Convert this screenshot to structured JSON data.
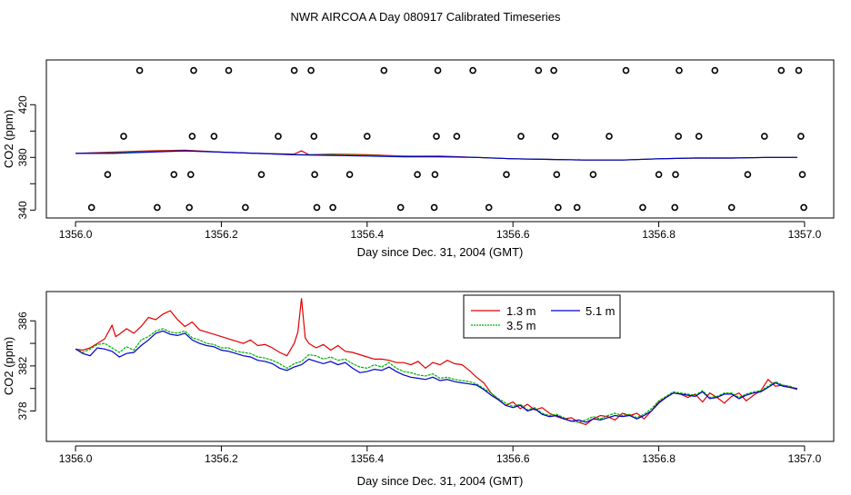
{
  "page_title": "NWR AIRCOA A  Day 080917  Calibrated Timeseries",
  "chart_data": [
    {
      "id": "top",
      "type": "scatter+line",
      "title": "",
      "xlabel": "Day since Dec. 31, 2004 (GMT)",
      "ylabel": "CO2 (ppm)",
      "xlim": [
        1355.96,
        1357.04
      ],
      "ylim": [
        334,
        454
      ],
      "xticks": [
        1356.0,
        1356.2,
        1356.4,
        1356.6,
        1356.8,
        1357.0
      ],
      "xtick_labels": [
        "1356.0",
        "1356.2",
        "1356.4",
        "1356.6",
        "1356.8",
        "1357.0"
      ],
      "yticks": [
        340,
        380,
        420
      ],
      "ytick_labels": [
        "340",
        "380",
        "420"
      ],
      "yticks_minor": [
        360,
        400
      ],
      "calibration_points": {
        "name": "calibration standards",
        "rows": [
          {
            "y": 446,
            "x": [
              1356.088,
              1356.162,
              1356.21,
              1356.3,
              1356.323,
              1356.423,
              1356.497,
              1356.545,
              1356.635,
              1356.656,
              1356.755,
              1356.828,
              1356.877,
              1356.968,
              1356.992
            ]
          },
          {
            "y": 396,
            "x": [
              1356.066,
              1356.16,
              1356.19,
              1356.278,
              1356.327,
              1356.4,
              1356.495,
              1356.523,
              1356.611,
              1356.658,
              1356.732,
              1356.827,
              1356.855,
              1356.945,
              1356.995
            ]
          },
          {
            "y": 367,
            "x": [
              1356.044,
              1356.135,
              1356.158,
              1356.255,
              1356.328,
              1356.376,
              1356.469,
              1356.493,
              1356.591,
              1356.66,
              1356.71,
              1356.8,
              1356.823,
              1356.922,
              1356.997
            ]
          },
          {
            "y": 342,
            "x": [
              1356.022,
              1356.112,
              1356.156,
              1356.233,
              1356.331,
              1356.353,
              1356.446,
              1356.492,
              1356.567,
              1356.662,
              1356.688,
              1356.778,
              1356.822,
              1356.9,
              1356.999
            ]
          }
        ]
      },
      "series": [
        {
          "name": "1.3 m",
          "color": "#e00000",
          "x": [
            1356.0,
            1356.05,
            1356.1,
            1356.15,
            1356.2,
            1356.25,
            1356.3,
            1356.31,
            1356.32,
            1356.35,
            1356.4,
            1356.45,
            1356.5,
            1356.55,
            1356.6,
            1356.65,
            1356.7,
            1356.75,
            1356.8,
            1356.85,
            1356.9,
            1356.95,
            1356.99
          ],
          "y": [
            383,
            384,
            385,
            385.5,
            384,
            383,
            382.5,
            385,
            382,
            382.5,
            382,
            381,
            381,
            380,
            379,
            378.5,
            378,
            378,
            379,
            379.5,
            379.5,
            380,
            380
          ]
        },
        {
          "name": "3.5 m",
          "color": "#00b000",
          "x": [
            1356.0,
            1356.05,
            1356.1,
            1356.15,
            1356.2,
            1356.25,
            1356.3,
            1356.35,
            1356.4,
            1356.45,
            1356.5,
            1356.55,
            1356.6,
            1356.65,
            1356.7,
            1356.75,
            1356.8,
            1356.85,
            1356.9,
            1356.95,
            1356.99
          ],
          "y": [
            383,
            383.5,
            384.5,
            385,
            384,
            383,
            382,
            382,
            381.5,
            381,
            380.5,
            380,
            379,
            378.5,
            378,
            378,
            379,
            379.5,
            379.5,
            380,
            380
          ]
        },
        {
          "name": "5.1 m",
          "color": "#0000cc",
          "x": [
            1356.0,
            1356.05,
            1356.1,
            1356.15,
            1356.2,
            1356.25,
            1356.3,
            1356.35,
            1356.4,
            1356.45,
            1356.5,
            1356.55,
            1356.6,
            1356.65,
            1356.7,
            1356.75,
            1356.8,
            1356.85,
            1356.9,
            1356.95,
            1356.99
          ],
          "y": [
            383,
            383,
            384,
            385,
            384,
            383,
            382,
            381.5,
            381,
            380.5,
            380.5,
            380,
            379,
            378.5,
            378,
            378,
            379,
            379.5,
            379.5,
            380,
            380
          ]
        }
      ]
    },
    {
      "id": "bottom",
      "type": "line",
      "title": "",
      "xlabel": "Day since Dec. 31, 2004 (GMT)",
      "ylabel": "CO2 (ppm)",
      "xlim": [
        1355.96,
        1357.04
      ],
      "ylim": [
        375.3,
        388.6
      ],
      "xticks": [
        1356.0,
        1356.2,
        1356.4,
        1356.6,
        1356.8,
        1357.0
      ],
      "xtick_labels": [
        "1356.0",
        "1356.2",
        "1356.4",
        "1356.6",
        "1356.8",
        "1357.0"
      ],
      "yticks": [
        378,
        382,
        386
      ],
      "ytick_labels": [
        "378",
        "382",
        "386"
      ],
      "yticks_minor": [
        380,
        384
      ],
      "legend": {
        "position": "top-center",
        "entries": [
          "1.3 m",
          "3.5 m",
          "5.1 m"
        ]
      },
      "series": [
        {
          "name": "1.3 m",
          "color": "#e00000",
          "x": [
            1356.0,
            1356.01,
            1356.02,
            1356.03,
            1356.04,
            1356.05,
            1356.055,
            1356.06,
            1356.07,
            1356.08,
            1356.09,
            1356.1,
            1356.11,
            1356.12,
            1356.13,
            1356.14,
            1356.15,
            1356.16,
            1356.17,
            1356.18,
            1356.19,
            1356.2,
            1356.21,
            1356.22,
            1356.23,
            1356.24,
            1356.25,
            1356.26,
            1356.27,
            1356.28,
            1356.29,
            1356.3,
            1356.305,
            1356.31,
            1356.315,
            1356.32,
            1356.33,
            1356.34,
            1356.35,
            1356.36,
            1356.37,
            1356.38,
            1356.39,
            1356.4,
            1356.41,
            1356.42,
            1356.43,
            1356.44,
            1356.45,
            1356.46,
            1356.47,
            1356.48,
            1356.49,
            1356.5,
            1356.51,
            1356.52,
            1356.53,
            1356.54,
            1356.55,
            1356.56,
            1356.57,
            1356.58,
            1356.59,
            1356.6,
            1356.61,
            1356.62,
            1356.63,
            1356.64,
            1356.65,
            1356.66,
            1356.67,
            1356.68,
            1356.69,
            1356.7,
            1356.71,
            1356.72,
            1356.73,
            1356.74,
            1356.75,
            1356.76,
            1356.77,
            1356.78,
            1356.79,
            1356.8,
            1356.81,
            1356.82,
            1356.83,
            1356.84,
            1356.85,
            1356.86,
            1356.87,
            1356.88,
            1356.89,
            1356.9,
            1356.91,
            1356.92,
            1356.93,
            1356.94,
            1356.95,
            1356.96,
            1356.97,
            1356.98,
            1356.99
          ],
          "y": [
            383.5,
            383.4,
            383.6,
            384.0,
            384.4,
            385.6,
            384.6,
            384.8,
            385.3,
            384.9,
            385.5,
            386.3,
            386.1,
            386.6,
            386.9,
            386.1,
            385.5,
            385.9,
            385.2,
            385.0,
            384.8,
            384.6,
            384.4,
            384.2,
            384.0,
            384.3,
            383.8,
            383.9,
            383.6,
            383.2,
            382.9,
            384.0,
            385.0,
            388.0,
            384.5,
            384.0,
            383.6,
            383.9,
            383.4,
            383.8,
            383.3,
            383.2,
            383.0,
            382.8,
            382.6,
            382.6,
            382.5,
            382.3,
            382.3,
            382.1,
            382.4,
            381.8,
            382.3,
            382.1,
            382.5,
            382.2,
            382.1,
            381.6,
            381.0,
            380.5,
            379.6,
            379.0,
            378.5,
            378.8,
            378.2,
            378.6,
            378.1,
            378.3,
            377.8,
            377.5,
            377.3,
            377.4,
            377.0,
            376.8,
            377.3,
            377.6,
            377.5,
            377.2,
            377.8,
            377.6,
            377.8,
            377.3,
            378.0,
            378.8,
            379.2,
            379.6,
            379.5,
            379.2,
            379.5,
            378.8,
            379.6,
            379.2,
            378.7,
            379.3,
            379.6,
            378.9,
            379.4,
            379.8,
            380.8,
            380.2,
            380.3,
            380.1,
            379.9
          ]
        },
        {
          "name": "3.5 m",
          "color": "#00b000",
          "x": [
            1356.0,
            1356.01,
            1356.02,
            1356.03,
            1356.04,
            1356.05,
            1356.06,
            1356.07,
            1356.08,
            1356.09,
            1356.1,
            1356.11,
            1356.12,
            1356.13,
            1356.14,
            1356.15,
            1356.16,
            1356.17,
            1356.18,
            1356.19,
            1356.2,
            1356.21,
            1356.22,
            1356.23,
            1356.24,
            1356.25,
            1356.26,
            1356.27,
            1356.28,
            1356.29,
            1356.3,
            1356.31,
            1356.32,
            1356.33,
            1356.34,
            1356.35,
            1356.36,
            1356.37,
            1356.38,
            1356.39,
            1356.4,
            1356.41,
            1356.42,
            1356.43,
            1356.44,
            1356.45,
            1356.46,
            1356.47,
            1356.48,
            1356.49,
            1356.5,
            1356.51,
            1356.52,
            1356.53,
            1356.54,
            1356.55,
            1356.56,
            1356.57,
            1356.58,
            1356.59,
            1356.6,
            1356.61,
            1356.62,
            1356.63,
            1356.64,
            1356.65,
            1356.66,
            1356.67,
            1356.68,
            1356.69,
            1356.7,
            1356.71,
            1356.72,
            1356.73,
            1356.74,
            1356.75,
            1356.76,
            1356.77,
            1356.78,
            1356.79,
            1356.8,
            1356.81,
            1356.82,
            1356.83,
            1356.84,
            1356.85,
            1356.86,
            1356.87,
            1356.88,
            1356.89,
            1356.9,
            1356.91,
            1356.92,
            1356.93,
            1356.94,
            1356.95,
            1356.96,
            1356.97,
            1356.98,
            1356.99
          ],
          "y": [
            383.5,
            383.2,
            383.5,
            383.9,
            384.0,
            383.6,
            383.2,
            383.7,
            383.4,
            384.3,
            384.6,
            385.1,
            385.3,
            385.0,
            384.9,
            385.1,
            384.5,
            384.3,
            384.0,
            383.9,
            383.6,
            383.6,
            383.3,
            383.2,
            383.1,
            382.8,
            382.7,
            382.5,
            382.2,
            381.8,
            382.2,
            382.4,
            383.0,
            382.9,
            382.6,
            382.8,
            382.5,
            382.6,
            382.2,
            381.9,
            381.8,
            382.1,
            381.9,
            382.3,
            381.8,
            381.5,
            381.4,
            381.2,
            381.1,
            381.3,
            380.9,
            381.0,
            380.8,
            380.7,
            380.6,
            380.4,
            380.0,
            379.6,
            379.1,
            378.7,
            378.4,
            378.6,
            378.1,
            378.3,
            377.8,
            377.6,
            377.7,
            377.4,
            377.1,
            377.0,
            377.2,
            377.5,
            377.3,
            377.6,
            377.8,
            377.6,
            377.7,
            377.4,
            377.7,
            378.2,
            378.9,
            379.3,
            379.7,
            379.6,
            379.5,
            379.4,
            379.8,
            379.2,
            379.3,
            379.6,
            379.6,
            379.2,
            379.5,
            379.7,
            379.8,
            380.2,
            380.6,
            380.3,
            380.2,
            379.9
          ]
        },
        {
          "name": "5.1 m",
          "color": "#0000cc",
          "x": [
            1356.0,
            1356.01,
            1356.02,
            1356.03,
            1356.04,
            1356.05,
            1356.06,
            1356.07,
            1356.08,
            1356.09,
            1356.1,
            1356.11,
            1356.12,
            1356.13,
            1356.14,
            1356.15,
            1356.16,
            1356.17,
            1356.18,
            1356.19,
            1356.2,
            1356.21,
            1356.22,
            1356.23,
            1356.24,
            1356.25,
            1356.26,
            1356.27,
            1356.28,
            1356.29,
            1356.3,
            1356.31,
            1356.32,
            1356.33,
            1356.34,
            1356.35,
            1356.36,
            1356.37,
            1356.38,
            1356.39,
            1356.4,
            1356.41,
            1356.42,
            1356.43,
            1356.44,
            1356.45,
            1356.46,
            1356.47,
            1356.48,
            1356.49,
            1356.5,
            1356.51,
            1356.52,
            1356.53,
            1356.54,
            1356.55,
            1356.56,
            1356.57,
            1356.58,
            1356.59,
            1356.6,
            1356.61,
            1356.62,
            1356.63,
            1356.64,
            1356.65,
            1356.66,
            1356.67,
            1356.68,
            1356.69,
            1356.7,
            1356.71,
            1356.72,
            1356.73,
            1356.74,
            1356.75,
            1356.76,
            1356.77,
            1356.78,
            1356.79,
            1356.8,
            1356.81,
            1356.82,
            1356.83,
            1356.84,
            1356.85,
            1356.86,
            1356.87,
            1356.88,
            1356.89,
            1356.9,
            1356.91,
            1356.92,
            1356.93,
            1356.94,
            1356.95,
            1356.96,
            1356.97,
            1356.98,
            1356.99
          ],
          "y": [
            383.5,
            383.1,
            382.9,
            383.6,
            383.5,
            383.3,
            382.8,
            383.1,
            383.2,
            383.8,
            384.3,
            384.9,
            385.1,
            384.8,
            384.7,
            384.9,
            384.3,
            384.0,
            383.8,
            383.7,
            383.4,
            383.3,
            383.1,
            382.9,
            382.8,
            382.5,
            382.4,
            382.2,
            381.8,
            381.6,
            381.9,
            382.1,
            382.6,
            382.4,
            382.2,
            382.4,
            382.1,
            382.3,
            381.8,
            381.4,
            381.5,
            381.7,
            381.6,
            381.9,
            381.5,
            381.2,
            381.0,
            380.9,
            380.8,
            381.0,
            380.7,
            380.8,
            380.6,
            380.5,
            380.4,
            380.3,
            379.9,
            379.4,
            379.0,
            378.5,
            378.3,
            378.5,
            378.0,
            378.2,
            377.7,
            377.5,
            377.6,
            377.3,
            377.1,
            377.2,
            377.0,
            377.3,
            377.2,
            377.4,
            377.6,
            377.5,
            377.6,
            377.3,
            377.6,
            378.0,
            378.7,
            379.2,
            379.6,
            379.5,
            379.4,
            379.3,
            379.7,
            379.1,
            379.2,
            379.5,
            379.5,
            379.1,
            379.4,
            379.6,
            379.7,
            380.1,
            380.5,
            380.2,
            380.1,
            380.0
          ]
        }
      ]
    }
  ]
}
